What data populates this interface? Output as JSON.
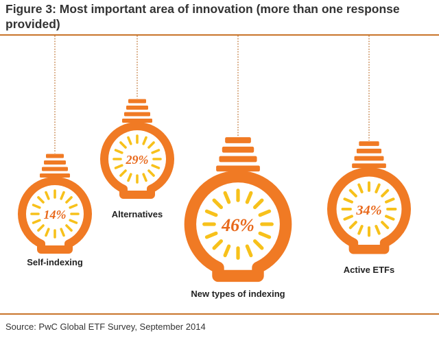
{
  "header": {
    "title": "Figure 3: Most important area of innovation (more than one response provided)"
  },
  "footer": {
    "source": "Source: PwC Global ETF Survey, September 2014"
  },
  "colors": {
    "bulb": "#f07a24",
    "rays": "#f7c11b",
    "percent": "#e8691c",
    "rule": "#c8742a"
  },
  "chart_data": {
    "type": "pictograph",
    "title": "Figure 3: Most important area of innovation (more than one response provided)",
    "unit": "%",
    "categories": [
      "Self-indexing",
      "Alternatives",
      "New types of indexing",
      "Active ETFs"
    ],
    "values": [
      14,
      29,
      46,
      34
    ],
    "value_labels": [
      "14%",
      "29%",
      "46%",
      "34%"
    ],
    "icon": "light-bulb-icon"
  }
}
